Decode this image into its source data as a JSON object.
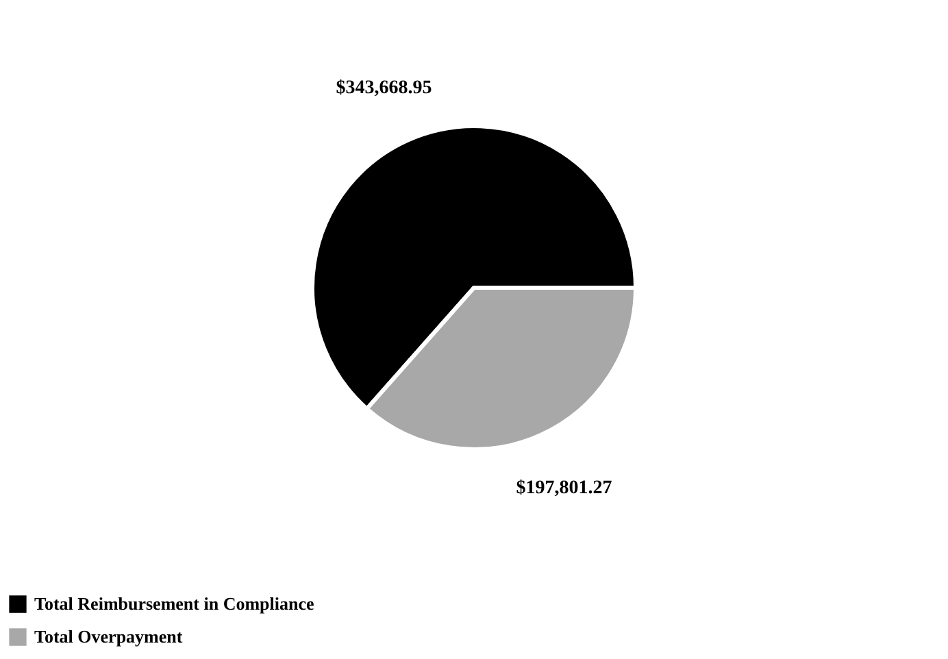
{
  "chart_data": {
    "type": "pie",
    "categories": [
      "Total Reimbursement in Compliance",
      "Total Overpayment"
    ],
    "values": [
      343668.95,
      197801.27
    ],
    "colors": [
      "#000000",
      "#a8a8a8"
    ],
    "value_labels": [
      "$343,668.95",
      "$197,801.27"
    ],
    "legend": "bottom left"
  }
}
